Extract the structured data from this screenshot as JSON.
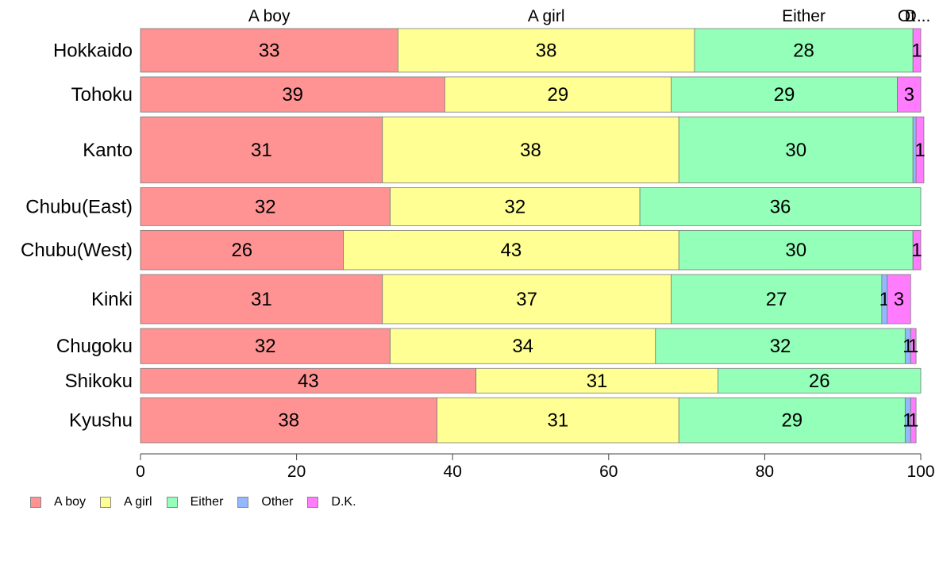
{
  "chart_data": {
    "type": "bar",
    "orientation": "horizontal",
    "stacked": true,
    "categories": [
      "Hokkaido",
      "Tohoku",
      "Kanto",
      "Chubu(East)",
      "Chubu(West)",
      "Kinki",
      "Chugoku",
      "Shikoku",
      "Kyushu"
    ],
    "group_weights": [
      62,
      50,
      94,
      54,
      56,
      70,
      50,
      35,
      64
    ],
    "series": [
      {
        "name": "A boy",
        "color": "#ff9393",
        "values": [
          33,
          39,
          31,
          32,
          26,
          31,
          32,
          43,
          38
        ]
      },
      {
        "name": "A girl",
        "color": "#ffff93",
        "values": [
          38,
          29,
          38,
          32,
          43,
          37,
          34,
          31,
          31
        ]
      },
      {
        "name": "Either",
        "color": "#93ffb8",
        "values": [
          28,
          29,
          30,
          36,
          30,
          27,
          32,
          26,
          29
        ]
      },
      {
        "name": "Other",
        "color": "#93b8ff",
        "values": [
          0,
          0,
          0.4,
          0,
          0,
          0.7,
          0.7,
          0,
          0.7
        ]
      },
      {
        "name": "D.K.",
        "color": "#ff7cff",
        "values": [
          1,
          3,
          1,
          0,
          1,
          3,
          0.7,
          0,
          0.7
        ]
      }
    ],
    "data_labels": [
      [
        "33",
        "38",
        "28",
        "",
        "1"
      ],
      [
        "39",
        "29",
        "29",
        "",
        "3"
      ],
      [
        "31",
        "38",
        "30",
        "",
        "1"
      ],
      [
        "32",
        "32",
        "36",
        "",
        ""
      ],
      [
        "26",
        "43",
        "30",
        "",
        "1"
      ],
      [
        "31",
        "37",
        "27",
        "1",
        "3"
      ],
      [
        "32",
        "34",
        "32",
        "1",
        "1"
      ],
      [
        "43",
        "31",
        "26",
        "",
        ""
      ],
      [
        "38",
        "31",
        "29",
        "1",
        "1"
      ]
    ],
    "top_labels": [
      "A boy",
      "A girl",
      "Either",
      "Ot",
      "D..."
    ],
    "xlim": [
      0,
      100
    ],
    "xticks": [
      "0",
      "20",
      "40",
      "60",
      "80",
      "100"
    ],
    "xlabel": "",
    "ylabel": "",
    "title": "",
    "grid": false,
    "legend_position": "bottom-left"
  },
  "legend": [
    {
      "label": "A boy",
      "color": "#ff9393"
    },
    {
      "label": "A girl",
      "color": "#ffff93"
    },
    {
      "label": "Either",
      "color": "#93ffb8"
    },
    {
      "label": "Other",
      "color": "#93b8ff"
    },
    {
      "label": "D.K.",
      "color": "#ff7cff"
    }
  ]
}
